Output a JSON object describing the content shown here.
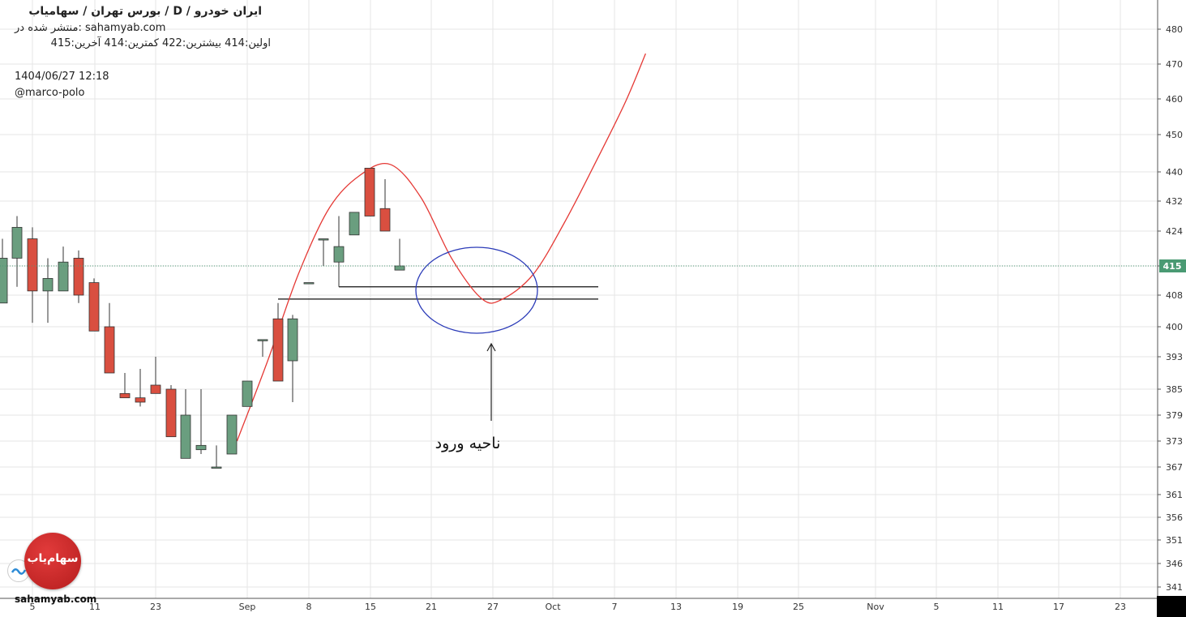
{
  "header": {
    "title": "ایران خودرو / D / بورس تهران / سهامیاب",
    "published": "منتشر شده در: sahamyab.com",
    "ohlc": "اولین:414  بیشترین:422  کمترین:414  آخرین:415",
    "datetime": "1404/06/27 12:18",
    "author": "@marco-polo"
  },
  "footer": {
    "site": "sahamyab.com",
    "logo_text": "سهام‌یاب"
  },
  "annotation": {
    "text": "ناحیه ورود"
  },
  "colors": {
    "up": "#6a9e7f",
    "down": "#d94f40",
    "projection": "#e53935",
    "zone": "#2b3bb8",
    "grid": "#e6e6e6",
    "last_price": "#4a9a73"
  },
  "chart_data": {
    "type": "candlestick",
    "symbol": "ایران خودرو",
    "timeframe": "D",
    "ylim": [
      338,
      486
    ],
    "y_ticks": [
      341,
      346,
      351,
      356,
      361,
      367,
      373,
      379,
      385,
      393,
      400,
      408,
      415,
      424,
      432,
      440,
      450,
      460,
      470,
      480
    ],
    "x_ticks": [
      "5",
      "11",
      "23",
      "Sep",
      "8",
      "15",
      "21",
      "27",
      "Oct",
      "7",
      "13",
      "19",
      "25",
      "Nov",
      "5",
      "11",
      "17",
      "23"
    ],
    "last_price": 415,
    "candles": [
      {
        "o": 406,
        "h": 422,
        "l": 406,
        "c": 417
      },
      {
        "o": 417,
        "h": 428,
        "l": 410,
        "c": 425
      },
      {
        "o": 422,
        "h": 425,
        "l": 401,
        "c": 409
      },
      {
        "o": 409,
        "h": 417,
        "l": 401,
        "c": 412
      },
      {
        "o": 409,
        "h": 420,
        "l": 409,
        "c": 416
      },
      {
        "o": 417,
        "h": 419,
        "l": 406,
        "c": 408
      },
      {
        "o": 411,
        "h": 412,
        "l": 399,
        "c": 399
      },
      {
        "o": 400,
        "h": 406,
        "l": 389,
        "c": 389
      },
      {
        "o": 384,
        "h": 389,
        "l": 383,
        "c": 383
      },
      {
        "o": 383,
        "h": 390,
        "l": 381,
        "c": 382
      },
      {
        "o": 386,
        "h": 393,
        "l": 384,
        "c": 384
      },
      {
        "o": 385,
        "h": 386,
        "l": 374,
        "c": 374
      },
      {
        "o": 369,
        "h": 385,
        "l": 369,
        "c": 379
      },
      {
        "o": 371,
        "h": 385,
        "l": 370,
        "c": 372
      },
      {
        "o": 367,
        "h": 372,
        "l": 367,
        "c": 367
      },
      {
        "o": 370,
        "h": 379,
        "l": 370,
        "c": 379
      },
      {
        "o": 381,
        "h": 387,
        "l": 381,
        "c": 387
      },
      {
        "o": 397,
        "h": 397,
        "l": 393,
        "c": 397
      },
      {
        "o": 402,
        "h": 406,
        "l": 387,
        "c": 387
      },
      {
        "o": 392,
        "h": 403,
        "l": 382,
        "c": 402
      },
      {
        "o": 411,
        "h": 411,
        "l": 411,
        "c": 411
      },
      {
        "o": 422,
        "h": 422,
        "l": 415,
        "c": 422
      },
      {
        "o": 416,
        "h": 428,
        "l": 410,
        "c": 420
      },
      {
        "o": 423,
        "h": 429,
        "l": 423,
        "c": 429
      },
      {
        "o": 441,
        "h": 441,
        "l": 428,
        "c": 428
      },
      {
        "o": 430,
        "h": 438,
        "l": 424,
        "c": 424
      },
      {
        "o": 414,
        "h": 422,
        "l": 414,
        "c": 415
      }
    ],
    "levels": [
      410,
      407
    ],
    "projection_path": [
      [
        "2025-08-31",
        373
      ],
      [
        "2025-09-03",
        392
      ],
      [
        "2025-09-06",
        413
      ],
      [
        "2025-09-09",
        430
      ],
      [
        "2025-09-12",
        439
      ],
      [
        "2025-09-15",
        442
      ],
      [
        "2025-09-18",
        433
      ],
      [
        "2025-09-21",
        417
      ],
      [
        "2025-09-24",
        407
      ],
      [
        "2025-09-26",
        407
      ],
      [
        "2025-09-29",
        413
      ],
      [
        "2025-10-02",
        426
      ],
      [
        "2025-10-05",
        442
      ],
      [
        "2025-10-08",
        459
      ],
      [
        "2025-10-10",
        473
      ]
    ]
  }
}
